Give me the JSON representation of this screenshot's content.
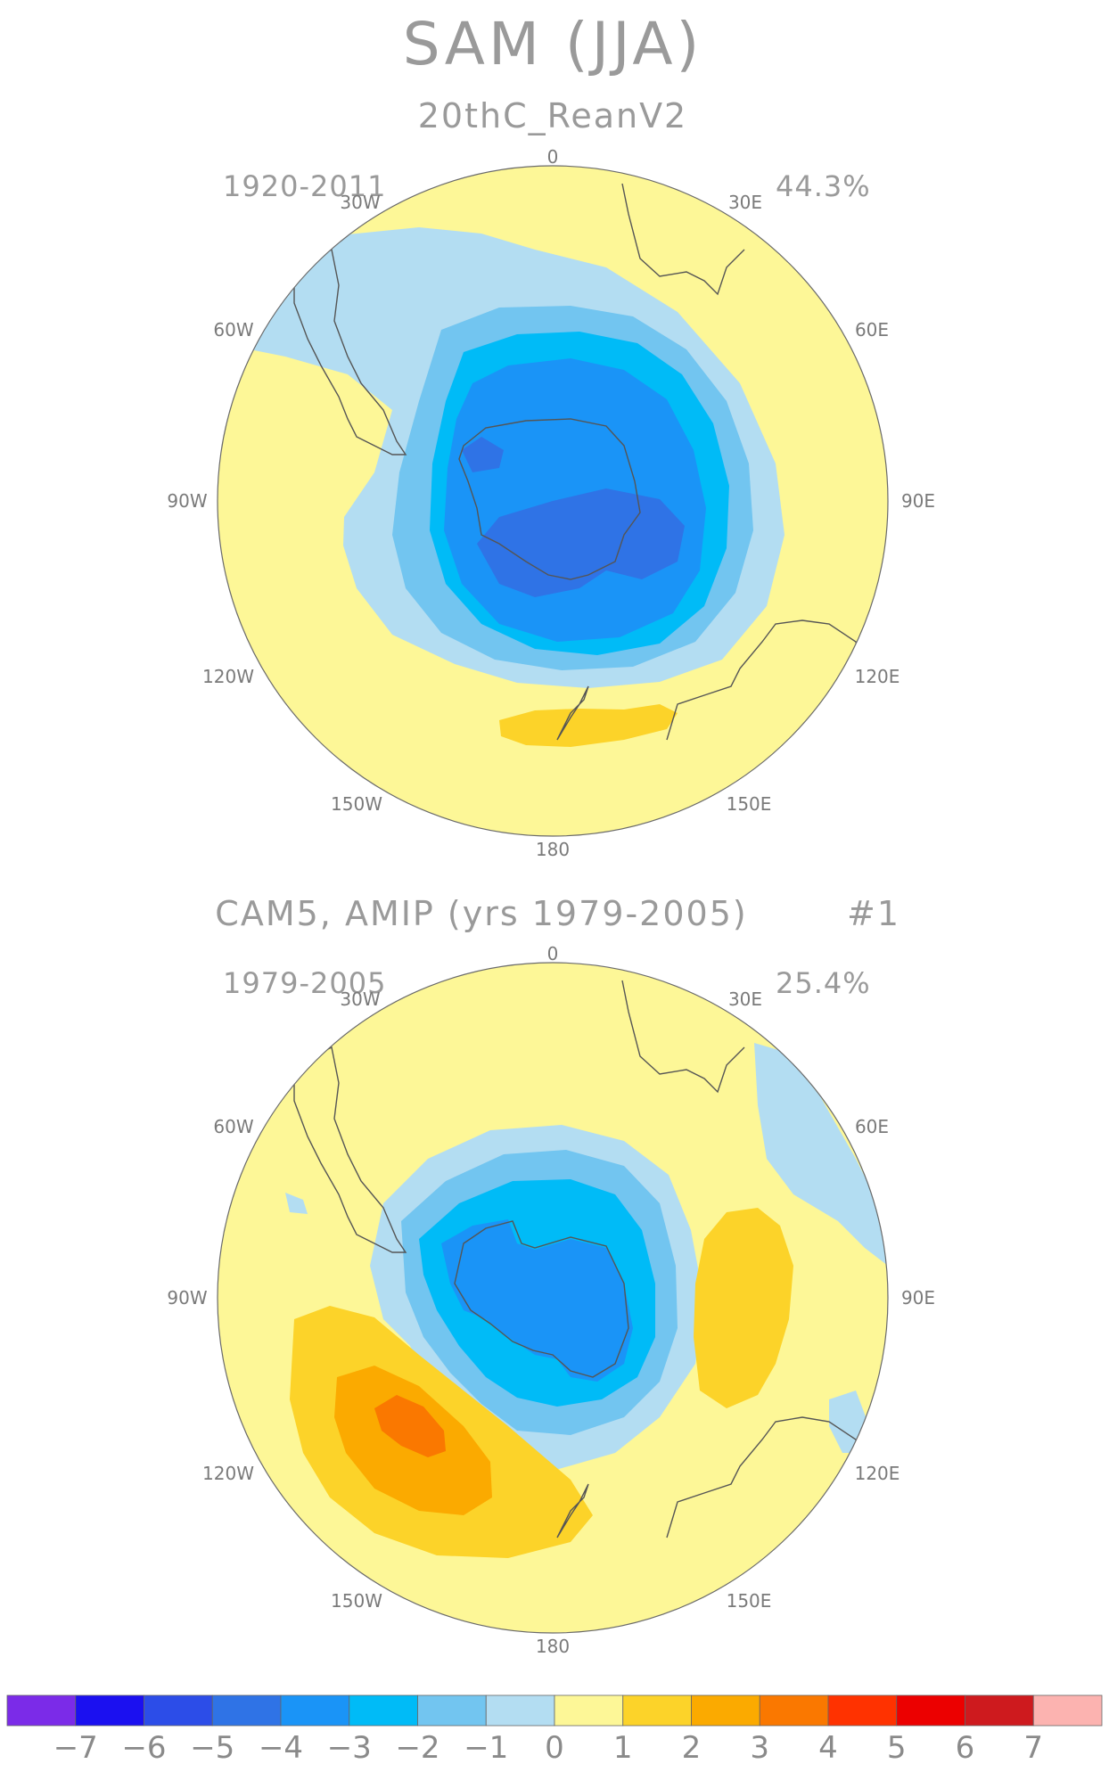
{
  "title": "SAM (JJA)",
  "colors": {
    "c_m7": "#7b2be8",
    "c_m6": "#1b10f0",
    "c_m5": "#2c4de8",
    "c_m4": "#2f73e6",
    "c_m3": "#1a94f7",
    "c_m2": "#00bbf7",
    "c_m1": "#72c5f0",
    "c_0": "#b3ddf2",
    "c_p0": "#fdf797",
    "c_p1": "#fcd329",
    "c_p2": "#fbaa00",
    "c_p3": "#fa7800",
    "c_p4": "#ff3200",
    "c_p5": "#ec0000",
    "c_p6": "#ce1a1e",
    "c_p7": "#fcb3b0"
  },
  "panels": [
    {
      "subtitle": "20thC_ReanV2",
      "period": "1920-2011",
      "variance": "44.3%",
      "extra": ""
    },
    {
      "subtitle": "CAM5, AMIP (yrs 1979-2005)",
      "period": "1979-2005",
      "variance": "25.4%",
      "extra": "#1"
    }
  ],
  "lon_labels": {
    "top": "0",
    "nw30": "30W",
    "ne30": "30E",
    "w60": "60W",
    "e60": "60E",
    "w90": "90W",
    "e90": "90E",
    "w120": "120W",
    "e120": "120E",
    "w150": "150W",
    "e150": "150E",
    "bottom": "180"
  },
  "colorbar": {
    "labels": [
      "−7",
      "−6",
      "−5",
      "−4",
      "−3",
      "−2",
      "−1",
      "0",
      "1",
      "2",
      "3",
      "4",
      "5",
      "6",
      "7"
    ]
  }
}
